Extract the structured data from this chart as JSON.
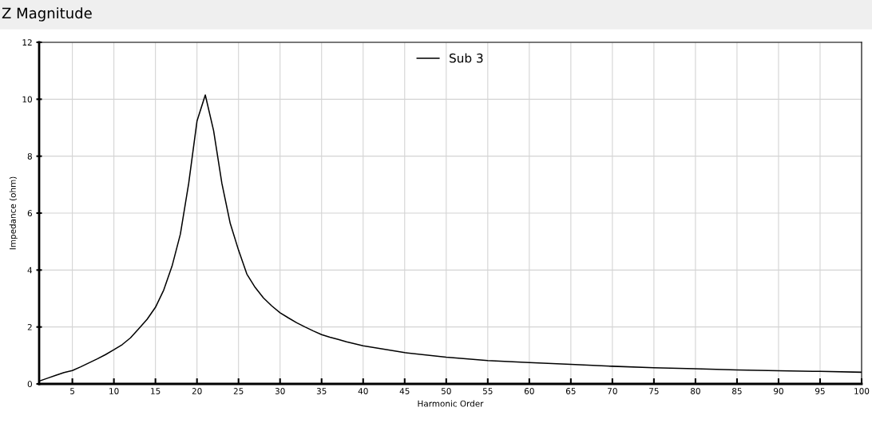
{
  "chart_data": {
    "type": "line",
    "title": "Z Magnitude",
    "xlabel": "Harmonic Order",
    "ylabel": "Impedance (ohm)",
    "x": [
      1,
      2,
      3,
      4,
      5,
      6,
      7,
      8,
      9,
      10,
      11,
      12,
      13,
      14,
      15,
      16,
      17,
      18,
      19,
      20,
      21,
      22,
      23,
      24,
      25,
      26,
      27,
      28,
      29,
      30,
      31,
      32,
      33,
      34,
      35,
      36,
      37,
      38,
      39,
      40,
      45,
      50,
      55,
      60,
      65,
      70,
      75,
      80,
      85,
      90,
      95,
      100
    ],
    "series": [
      {
        "name": "Sub 3",
        "color": "#000000",
        "values": [
          0.1,
          0.2,
          0.3,
          0.4,
          0.47,
          0.6,
          0.74,
          0.88,
          1.03,
          1.2,
          1.38,
          1.62,
          1.94,
          2.27,
          2.69,
          3.3,
          4.14,
          5.26,
          7.04,
          9.23,
          10.15,
          8.9,
          7.04,
          5.64,
          4.7,
          3.86,
          3.39,
          3.02,
          2.74,
          2.5,
          2.32,
          2.15,
          2.0,
          1.86,
          1.73,
          1.64,
          1.56,
          1.48,
          1.41,
          1.34,
          1.1,
          0.94,
          0.82,
          0.75,
          0.69,
          0.62,
          0.57,
          0.53,
          0.49,
          0.46,
          0.44,
          0.41
        ]
      }
    ],
    "xlim": [
      1,
      100
    ],
    "xticks": [
      5,
      10,
      15,
      20,
      25,
      30,
      35,
      40,
      45,
      50,
      55,
      60,
      65,
      70,
      75,
      80,
      85,
      90,
      95,
      100
    ],
    "ylim": [
      0,
      12
    ],
    "yticks": [
      0,
      2,
      4,
      6,
      8,
      10,
      12
    ],
    "grid": true,
    "legend": "top",
    "marker": "none",
    "line_style": "solid"
  }
}
